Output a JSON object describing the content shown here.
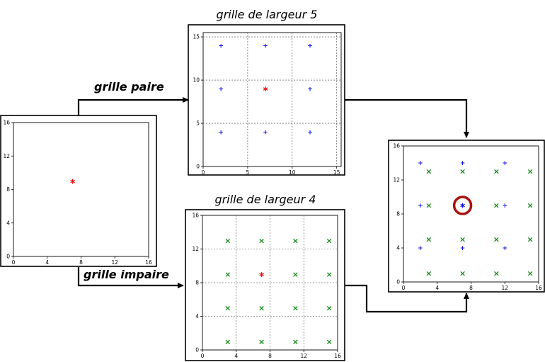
{
  "colors": {
    "even_marker": "#1010dd",
    "odd_marker": "#118811",
    "origin_marker": "#ee1111",
    "highlight_circle": "#aa1111"
  },
  "labels": {
    "even_branch": "grille paire",
    "odd_branch": "grille impaire",
    "top_title": "grille de largeur 5",
    "bottom_title": "grille de largeur 4"
  },
  "chart_data": [
    {
      "id": "source",
      "type": "scatter",
      "title": "",
      "xlim": [
        0,
        16
      ],
      "ylim": [
        0,
        16
      ],
      "xticks": [
        0,
        4,
        8,
        12,
        16
      ],
      "yticks": [
        0,
        4,
        8,
        12,
        16
      ],
      "grid": false,
      "series": [
        {
          "marker": "star",
          "color": "red",
          "points": [
            [
              7,
              9
            ]
          ]
        }
      ]
    },
    {
      "id": "even",
      "type": "scatter",
      "title": "grille de largeur 5",
      "xlim": [
        0,
        15.5
      ],
      "ylim": [
        0,
        15.5
      ],
      "xticks": [
        0,
        5,
        10,
        15
      ],
      "yticks": [
        0,
        5,
        10,
        15
      ],
      "grid": true,
      "series": [
        {
          "marker": "plus",
          "color": "blue",
          "points": [
            [
              2,
              14
            ],
            [
              7,
              14
            ],
            [
              12,
              14
            ],
            [
              2,
              9
            ],
            [
              12,
              9
            ],
            [
              2,
              4
            ],
            [
              7,
              4
            ],
            [
              12,
              4
            ]
          ]
        },
        {
          "marker": "star",
          "color": "red",
          "points": [
            [
              7,
              9
            ]
          ]
        }
      ]
    },
    {
      "id": "odd",
      "type": "scatter",
      "title": "grille de largeur 4",
      "xlim": [
        0,
        16
      ],
      "ylim": [
        0,
        16
      ],
      "xticks": [
        0,
        4,
        8,
        12,
        16
      ],
      "yticks": [
        0,
        4,
        8,
        12,
        16
      ],
      "grid": true,
      "series": [
        {
          "marker": "cross",
          "color": "green",
          "points": [
            [
              3,
              13
            ],
            [
              7,
              13
            ],
            [
              11,
              13
            ],
            [
              15,
              13
            ],
            [
              3,
              9
            ],
            [
              11,
              9
            ],
            [
              15,
              9
            ],
            [
              3,
              5
            ],
            [
              7,
              5
            ],
            [
              11,
              5
            ],
            [
              15,
              5
            ],
            [
              3,
              1
            ],
            [
              7,
              1
            ],
            [
              11,
              1
            ],
            [
              15,
              1
            ]
          ]
        },
        {
          "marker": "star",
          "color": "red",
          "points": [
            [
              7,
              9
            ]
          ]
        }
      ]
    },
    {
      "id": "combined",
      "type": "scatter",
      "title": "",
      "xlim": [
        0,
        16
      ],
      "ylim": [
        0,
        16
      ],
      "xticks": [
        0,
        4,
        8,
        12,
        16
      ],
      "yticks": [
        0,
        4,
        8,
        12,
        16
      ],
      "grid": false,
      "series": [
        {
          "marker": "plus",
          "color": "blue",
          "points": [
            [
              2,
              14
            ],
            [
              7,
              14
            ],
            [
              12,
              14
            ],
            [
              2,
              9
            ],
            [
              12,
              9
            ],
            [
              2,
              4
            ],
            [
              7,
              4
            ],
            [
              12,
              4
            ]
          ]
        },
        {
          "marker": "cross",
          "color": "green",
          "points": [
            [
              3,
              13
            ],
            [
              7,
              13
            ],
            [
              11,
              13
            ],
            [
              15,
              13
            ],
            [
              3,
              9
            ],
            [
              11,
              9
            ],
            [
              15,
              9
            ],
            [
              3,
              5
            ],
            [
              7,
              5
            ],
            [
              11,
              5
            ],
            [
              15,
              5
            ],
            [
              3,
              1
            ],
            [
              7,
              1
            ],
            [
              11,
              1
            ],
            [
              15,
              1
            ]
          ]
        },
        {
          "marker": "star",
          "color": "blue",
          "points": [
            [
              7,
              9
            ]
          ]
        }
      ],
      "highlight": {
        "x": 7,
        "y": 9
      }
    }
  ]
}
